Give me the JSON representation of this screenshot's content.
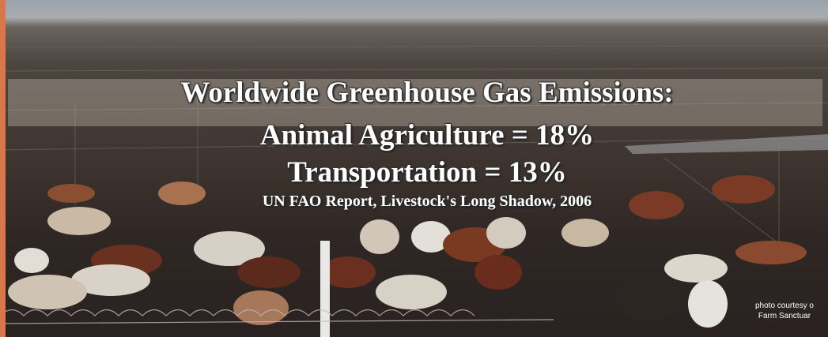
{
  "overlay": {
    "title_lines": [
      "Worldwide Greenhouse Gas Emissions:",
      "Animal Agriculture = 18%",
      "Transportation = 13%"
    ],
    "source": "UN FAO Report, Livestock's Long Shadow, 2006",
    "credit_lines": [
      "photo courtesy o",
      "Farm Sanctuar"
    ]
  }
}
